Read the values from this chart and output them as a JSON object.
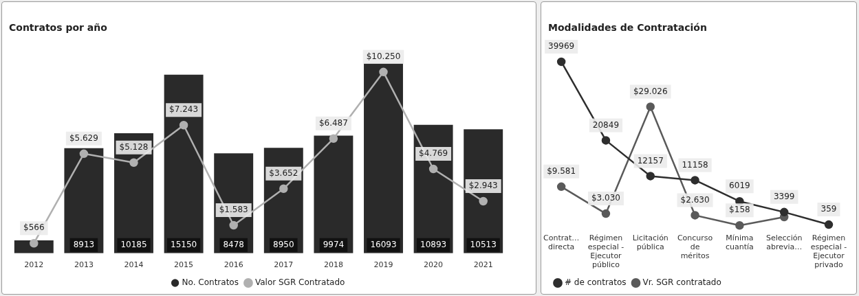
{
  "chart_data": [
    {
      "type": "bar",
      "title": "Contratos por año",
      "categories": [
        "2012",
        "2013",
        "2014",
        "2015",
        "2016",
        "2017",
        "2018",
        "2019",
        "2020",
        "2021"
      ],
      "legend": "bottom",
      "marker": "circle",
      "tick_labels": "x",
      "grid": false,
      "series": [
        {
          "name": "No. Contratos",
          "type": "bar",
          "color": "#2a2a2a",
          "values": [
            1100,
            8913,
            10185,
            15150,
            8478,
            8950,
            9974,
            16093,
            10893,
            10513
          ],
          "value_labels": [
            null,
            "8913",
            "10185",
            "15150",
            "8478",
            "8950",
            "9974",
            "16093",
            "10893",
            "10513"
          ]
        },
        {
          "name": "Valor SGR Contratado",
          "type": "line",
          "axis": "y2",
          "color": "#b0b0b0",
          "values": [
            566,
            5629,
            5128,
            7243,
            1583,
            3652,
            6487,
            10250,
            4769,
            2943
          ],
          "value_labels": [
            "$566",
            "$5.629",
            "$5.128",
            "$7.243",
            "$1.583",
            "$3.652",
            "$6.487",
            "$10.250",
            "$4.769",
            "$2.943"
          ]
        }
      ]
    },
    {
      "type": "line",
      "title": "Modalidades de Contratación",
      "categories": [
        "Contrat… directa",
        "Régimen especial - Ejecutor público",
        "Licitación pública",
        "Concurso de méritos",
        "Mínima cuantía",
        "Selección abrevia…",
        "Régimen especial - Ejecutor privado"
      ],
      "legend": "bottom left",
      "marker": "circle",
      "tick_labels": "x",
      "grid": false,
      "series": [
        {
          "name": "# de contratos",
          "color": "#2e2e2e",
          "values": [
            39969,
            20849,
            12157,
            11158,
            6019,
            3399,
            359
          ],
          "value_labels": [
            "39969",
            "20849",
            "12157",
            "11158",
            "6019",
            "3399",
            "359"
          ]
        },
        {
          "name": "Vr. SGR contratado",
          "color": "#5a5a5a",
          "values": [
            9581,
            3030,
            29026,
            2630,
            158,
            2200,
            null
          ],
          "value_labels": [
            "$9.581",
            "$3.030",
            "$29.026",
            "$2.630",
            "$158",
            null,
            null
          ]
        }
      ]
    }
  ]
}
